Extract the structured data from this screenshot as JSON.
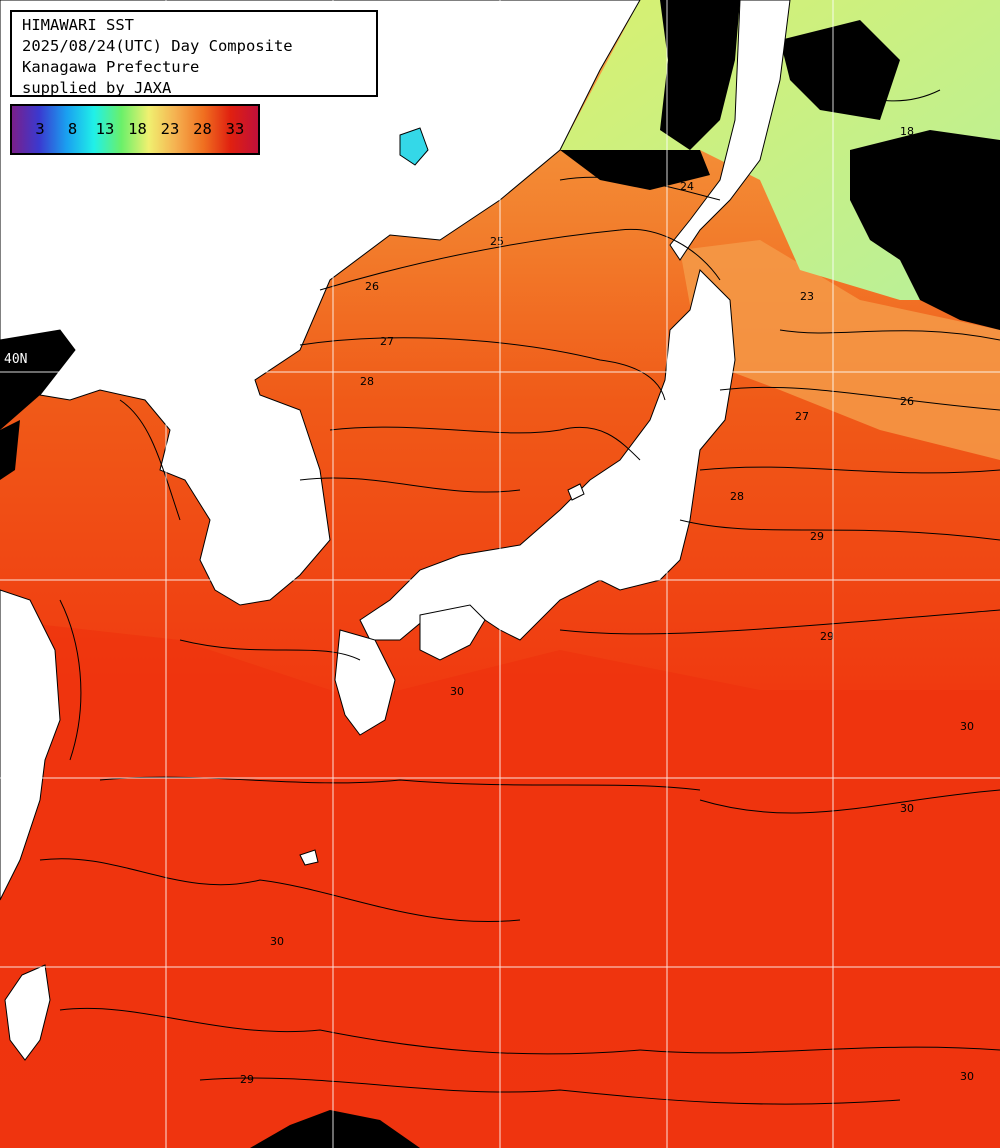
{
  "header": {
    "lines": [
      "HIMAWARI SST",
      "2025/08/24(UTC) Day Composite",
      "Kanagawa Prefecture",
      "supplied by JAXA"
    ]
  },
  "color_scale": {
    "ticks": [
      "3",
      "8",
      "13",
      "18",
      "23",
      "28",
      "33"
    ],
    "colors": [
      "#7a1f8a",
      "#3a3ad0",
      "#1aa0f0",
      "#20f0e8",
      "#6af06a",
      "#f0f070",
      "#f5b050",
      "#f07020",
      "#e02010",
      "#c0103a"
    ]
  },
  "latitude_label": "40N",
  "contour_labels": [
    "18",
    "23",
    "24",
    "25",
    "26",
    "27",
    "28",
    "29",
    "30"
  ],
  "colors": {
    "land": "#ffffff",
    "ocean_warm": "#f03a10",
    "ocean_mid": "#f26a20",
    "ocean_cool": "#f5a848",
    "cold_north": "#c8f070",
    "cloud": "#000000",
    "grid": "#ffffff"
  }
}
